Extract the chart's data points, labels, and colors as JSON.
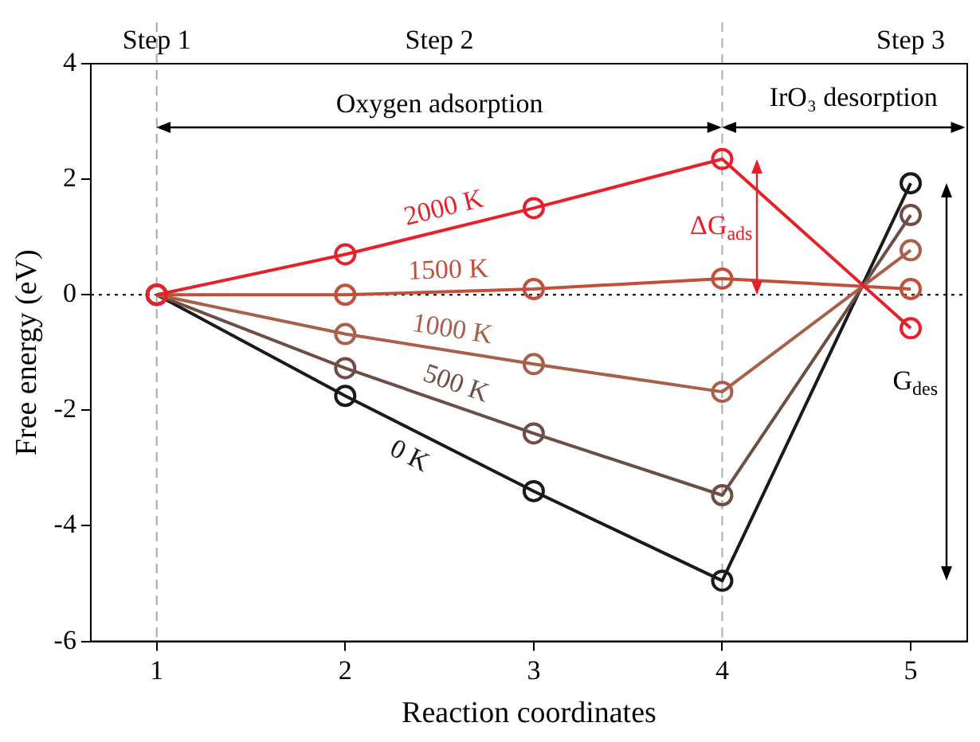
{
  "chart_data": {
    "type": "line",
    "xlabel": "Reaction coordinates",
    "ylabel": "Free energy (eV)",
    "x": [
      1,
      2,
      3,
      4,
      5
    ],
    "series": [
      {
        "name": "2000 K",
        "color": "#e8202a",
        "values": [
          0,
          0.7,
          1.5,
          2.35,
          -0.58
        ]
      },
      {
        "name": "1500 K",
        "color": "#c0503a",
        "values": [
          0,
          0,
          0.1,
          0.28,
          0.1
        ]
      },
      {
        "name": "1000 K",
        "color": "#a8604a",
        "values": [
          0,
          -0.68,
          -1.2,
          -1.68,
          0.77
        ]
      },
      {
        "name": "500 K",
        "color": "#6e4e44",
        "values": [
          0,
          -1.27,
          -2.4,
          -3.47,
          1.38
        ]
      },
      {
        "name": "0 K",
        "color": "#1a1a1a",
        "values": [
          0,
          -1.75,
          -3.4,
          -4.95,
          1.93
        ]
      }
    ],
    "xlim": [
      0.65,
      5.3
    ],
    "xticks": [
      1,
      2,
      3,
      4,
      5
    ],
    "ylim": [
      -6,
      4
    ],
    "yticks": [
      -6,
      -4,
      -2,
      0,
      2,
      4
    ],
    "grid": false,
    "legend": false,
    "marker": "circle",
    "line_style": "solid",
    "ref_lines": [
      {
        "axis": "y",
        "value": 0,
        "color": "#000000",
        "line_style": "dotted"
      },
      {
        "axis": "x",
        "value": 1,
        "color": "#aaaaaa",
        "line_style": "dashed"
      },
      {
        "axis": "x",
        "value": 4,
        "color": "#aaaaaa",
        "line_style": "dashed"
      }
    ],
    "annotations": [
      "Step 1",
      "Step 2",
      "Step 3",
      "Oxygen adsorption",
      "IrO₃ desorption",
      "ΔG$_{ads}$",
      "G$_{des}$"
    ]
  }
}
